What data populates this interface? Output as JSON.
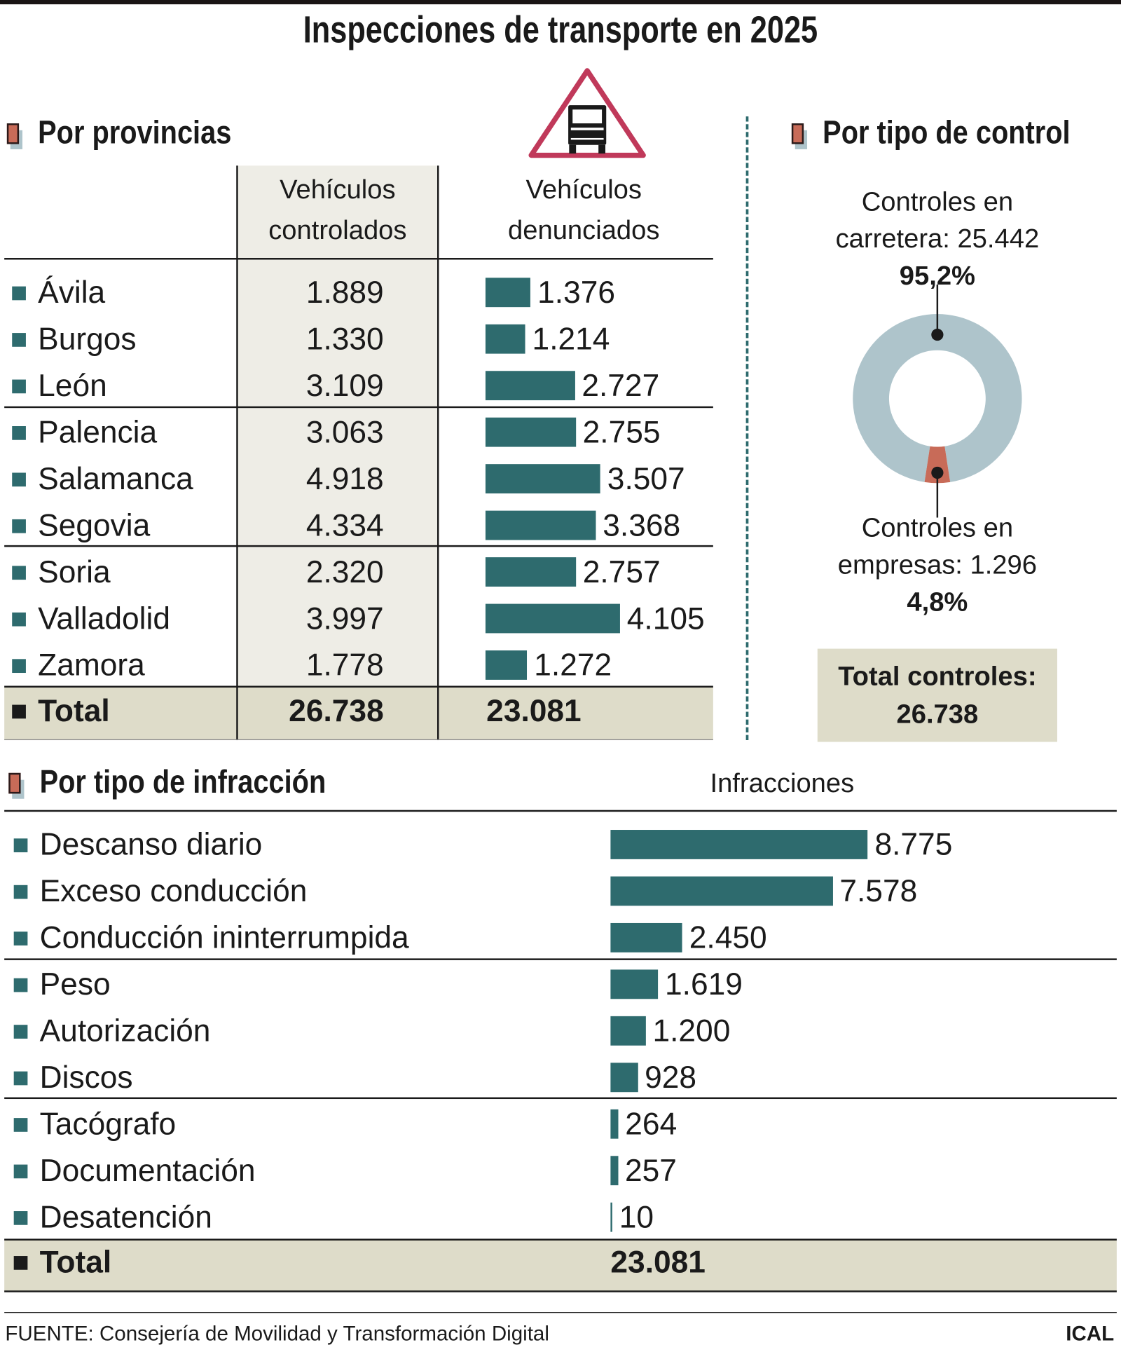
{
  "title": "Inspecciones de transporte en 2025",
  "colors": {
    "bar": "#2e6b6e",
    "donut_carretera": "#aec4cb",
    "donut_empresas": "#c86b58",
    "warning_triangle": "#c0395a",
    "total_shade": "#dedcc9",
    "column_shade": "#eeede6"
  },
  "icon": "truck-warning-triangle-icon",
  "provincias": {
    "heading": "Por provincias",
    "col1_line1": "Vehículos",
    "col1_line2": "controlados",
    "col2_line1": "Vehículos",
    "col2_line2": "denunciados",
    "rows": [
      {
        "name": "Ávila",
        "controlados": "1.889",
        "denunciados": "1.376",
        "value": 1376
      },
      {
        "name": "Burgos",
        "controlados": "1.330",
        "denunciados": "1.214",
        "value": 1214
      },
      {
        "name": "León",
        "controlados": "3.109",
        "denunciados": "2.727",
        "value": 2727
      },
      {
        "name": "Palencia",
        "controlados": "3.063",
        "denunciados": "2.755",
        "value": 2755
      },
      {
        "name": "Salamanca",
        "controlados": "4.918",
        "denunciados": "3.507",
        "value": 3507
      },
      {
        "name": "Segovia",
        "controlados": "4.334",
        "denunciados": "3.368",
        "value": 3368
      },
      {
        "name": "Soria",
        "controlados": "2.320",
        "denunciados": "2.757",
        "value": 2757
      },
      {
        "name": "Valladolid",
        "controlados": "3.997",
        "denunciados": "4.105",
        "value": 4105
      },
      {
        "name": "Zamora",
        "controlados": "1.778",
        "denunciados": "1.272",
        "value": 1272
      }
    ],
    "total_label": "Total",
    "total_controlados": "26.738",
    "total_denunciados": "23.081"
  },
  "control": {
    "heading": "Por tipo de control",
    "carretera_line1": "Controles en",
    "carretera_line2": "carretera: 25.442",
    "carretera_pct": "95,2%",
    "empresas_line1": "Controles en",
    "empresas_line2": "empresas: 1.296",
    "empresas_pct": "4,8%",
    "total_line1": "Total controles:",
    "total_line2": "26.738"
  },
  "infraccion": {
    "heading": "Por tipo de infracción",
    "column": "Infracciones",
    "rows": [
      {
        "name": "Descanso diario",
        "label": "8.775",
        "value": 8775
      },
      {
        "name": "Exceso conducción",
        "label": "7.578",
        "value": 7578
      },
      {
        "name": "Conducción ininterrumpida",
        "label": "2.450",
        "value": 2450
      },
      {
        "name": "Peso",
        "label": "1.619",
        "value": 1619
      },
      {
        "name": "Autorización",
        "label": "1.200",
        "value": 1200
      },
      {
        "name": "Discos",
        "label": "928",
        "value": 928
      },
      {
        "name": "Tacógrafo",
        "label": "264",
        "value": 264
      },
      {
        "name": "Documentación",
        "label": "257",
        "value": 257
      },
      {
        "name": "Desatención",
        "label": "10",
        "value": 10
      }
    ],
    "total_label": "Total",
    "total_value": "23.081"
  },
  "footer": {
    "source": "FUENTE: Consejería de Movilidad y Transformación Digital",
    "credit": "ICAL"
  },
  "chart_data": [
    {
      "type": "bar",
      "title": "Por provincias",
      "ylabel": "Vehículos denunciados",
      "categories": [
        "Ávila",
        "Burgos",
        "León",
        "Palencia",
        "Salamanca",
        "Segovia",
        "Soria",
        "Valladolid",
        "Zamora"
      ],
      "values": [
        1376,
        1214,
        2727,
        2755,
        3507,
        3368,
        2757,
        4105,
        1272
      ]
    },
    {
      "type": "pie",
      "title": "Por tipo de control",
      "categories": [
        "Controles en carretera",
        "Controles en empresas"
      ],
      "values": [
        25442,
        1296
      ],
      "percent": [
        95.2,
        4.8
      ]
    },
    {
      "type": "bar",
      "title": "Por tipo de infracción",
      "ylabel": "Infracciones",
      "categories": [
        "Descanso diario",
        "Exceso conducción",
        "Conducción ininterrumpida",
        "Peso",
        "Autorización",
        "Discos",
        "Tacógrafo",
        "Documentación",
        "Desatención"
      ],
      "values": [
        8775,
        7578,
        2450,
        1619,
        1200,
        928,
        264,
        257,
        10
      ]
    }
  ]
}
